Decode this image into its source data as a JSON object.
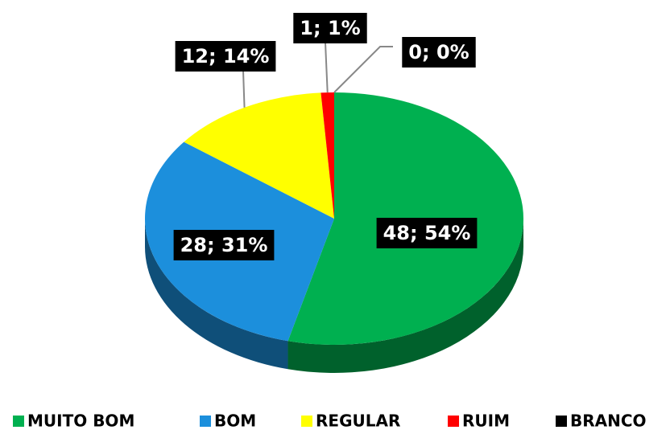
{
  "chart_data": {
    "type": "pie",
    "categories": [
      "MUITO BOM",
      "BOM",
      "REGULAR",
      "RUIM",
      "BRANCO"
    ],
    "values": [
      48,
      28,
      12,
      1,
      0
    ],
    "value_labels": [
      "48; 54%",
      "28; 31%",
      "12; 14%",
      "1; 1%",
      "0; 0%"
    ],
    "colors": [
      "#00b050",
      "#1c8fdc",
      "#ffff00",
      "#ff0000",
      "#000000"
    ],
    "three_d": true,
    "legend": "bottom"
  }
}
